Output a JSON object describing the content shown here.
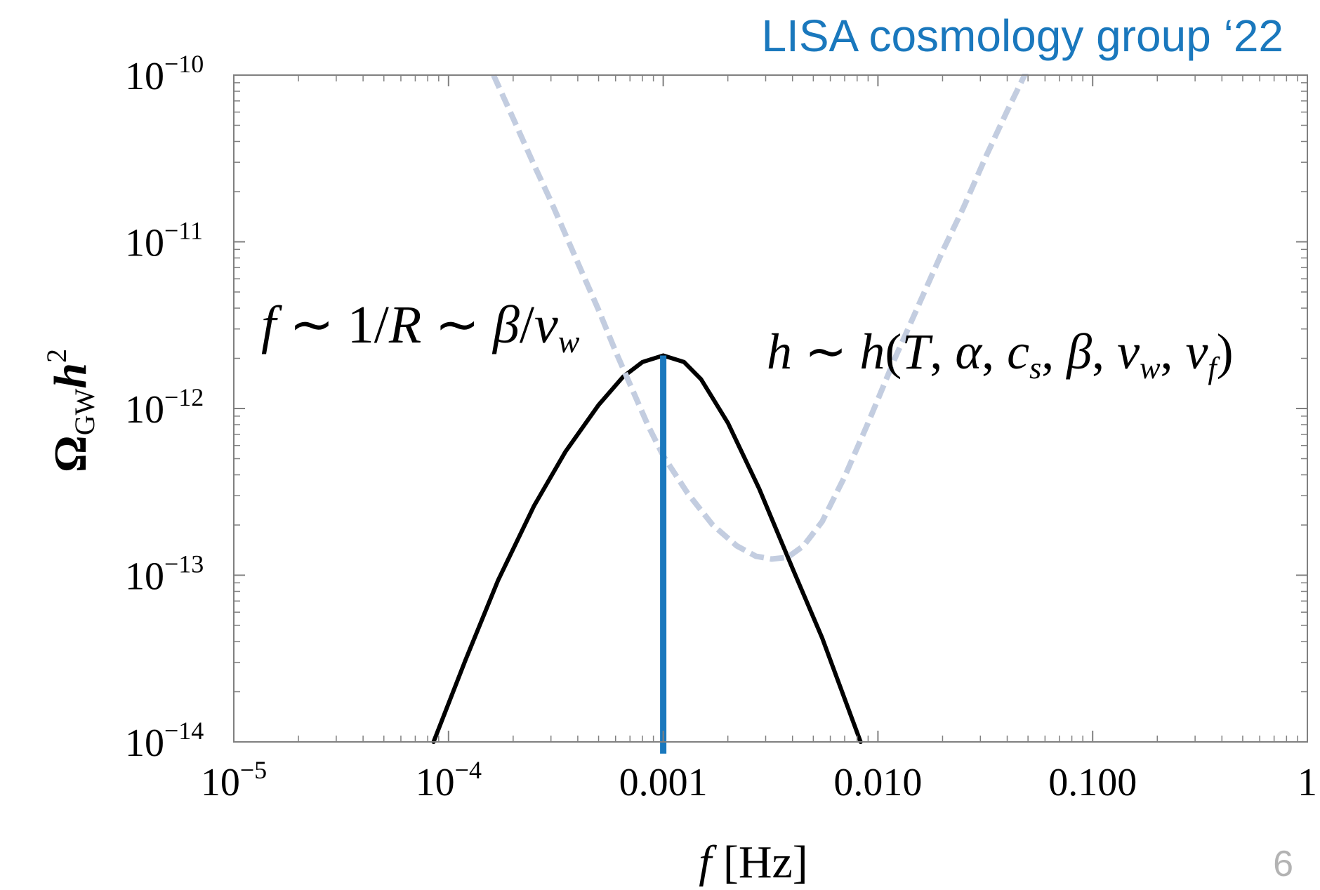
{
  "header": {
    "credit": "LISA cosmology group ‘22"
  },
  "footer": {
    "page_number": "6"
  },
  "colors": {
    "accent": "#1a78bd",
    "sensitivity": "#c3cde0",
    "spectrum": "#000000",
    "frame": "#808080"
  },
  "chart_data": {
    "type": "line",
    "x_scale": "log",
    "y_scale": "log",
    "xlim": [
      1e-05,
      1
    ],
    "ylim": [
      1e-14,
      1e-10
    ],
    "xlabel": {
      "main": "f",
      "unit": " [Hz]"
    },
    "ylabel": {
      "omega": "Ω",
      "sub": "GW",
      "h": "h",
      "sup": "2"
    },
    "grid": false,
    "x_ticks": [
      {
        "value": 1e-05,
        "base": "10",
        "exp": "−5"
      },
      {
        "value": 0.0001,
        "base": "10",
        "exp": "−4"
      },
      {
        "value": 0.001,
        "base": "0.001",
        "exp": ""
      },
      {
        "value": 0.01,
        "base": "0.010",
        "exp": ""
      },
      {
        "value": 0.1,
        "base": "0.100",
        "exp": ""
      },
      {
        "value": 1,
        "base": "1",
        "exp": ""
      }
    ],
    "y_ticks": [
      {
        "value": 1e-10,
        "base": "10",
        "exp": "−10"
      },
      {
        "value": 1e-11,
        "base": "10",
        "exp": "−11"
      },
      {
        "value": 1e-12,
        "base": "10",
        "exp": "−12"
      },
      {
        "value": 1e-13,
        "base": "10",
        "exp": "−13"
      },
      {
        "value": 1e-14,
        "base": "10",
        "exp": "−14"
      }
    ],
    "series": [
      {
        "style": "solid",
        "color": "#000000",
        "x": [
          8.52e-05,
          0.00012,
          0.00017,
          0.00025,
          0.00035,
          0.0005,
          0.00065,
          0.0008,
          0.001,
          0.00125,
          0.0015,
          0.002,
          0.0028,
          0.004,
          0.0055,
          0.0083
        ],
        "y": [
          1e-14,
          3.1e-14,
          9.3e-14,
          2.6e-13,
          5.5e-13,
          1.05e-12,
          1.55e-12,
          1.9e-12,
          2.08e-12,
          1.9e-12,
          1.5e-12,
          8.2e-13,
          3.3e-13,
          1.1e-13,
          4.2e-14,
          1e-14
        ]
      },
      {
        "style": "dashed",
        "color": "#c3cde0",
        "x": [
          0.000162,
          0.0002,
          0.00025,
          0.0003,
          0.0004,
          0.0005,
          0.0006,
          0.0007,
          0.00085,
          0.001,
          0.0013,
          0.0017,
          0.0022,
          0.0027,
          0.0032,
          0.0038,
          0.0045,
          0.0055,
          0.007,
          0.009,
          0.012,
          0.016,
          0.02,
          0.025,
          0.032,
          0.04,
          0.05
        ],
        "y": [
          1e-10,
          5.5e-11,
          2.9e-11,
          1.75e-11,
          7.5e-12,
          3.9e-12,
          2.2e-12,
          1.4e-12,
          7.9e-13,
          5.2e-13,
          3.1e-13,
          2e-13,
          1.5e-13,
          1.3e-13,
          1.25e-13,
          1.28e-13,
          1.5e-13,
          2.1e-13,
          3.9e-13,
          8.2e-13,
          2e-12,
          4.6e-12,
          8.8e-12,
          1.6e-11,
          3.3e-11,
          6.1e-11,
          1.1e-10
        ]
      },
      {
        "style": "marker-line",
        "color": "#1a78bd",
        "x": [
          0.001,
          0.001
        ],
        "y": [
          2.08e-12,
          8.5e-15
        ]
      }
    ],
    "annotations": {
      "left": {
        "f": "f",
        "t1": " ∼ 1/",
        "R": "R",
        "t2": " ∼ ",
        "beta": "β",
        "slash": "/",
        "v": "v",
        "w": "w"
      },
      "right": {
        "h": "h",
        "sim": " ∼ ",
        "h2": "h",
        "open": "(",
        "T": "T",
        "c1": ", ",
        "alpha": "α",
        "c2": ", ",
        "c": "c",
        "s": "s",
        "c3": ", ",
        "beta": "β",
        "c4": ", ",
        "v": "v",
        "w": "w",
        "c5": ", ",
        "v2": "v",
        "f": "f",
        "close": ")"
      }
    }
  }
}
